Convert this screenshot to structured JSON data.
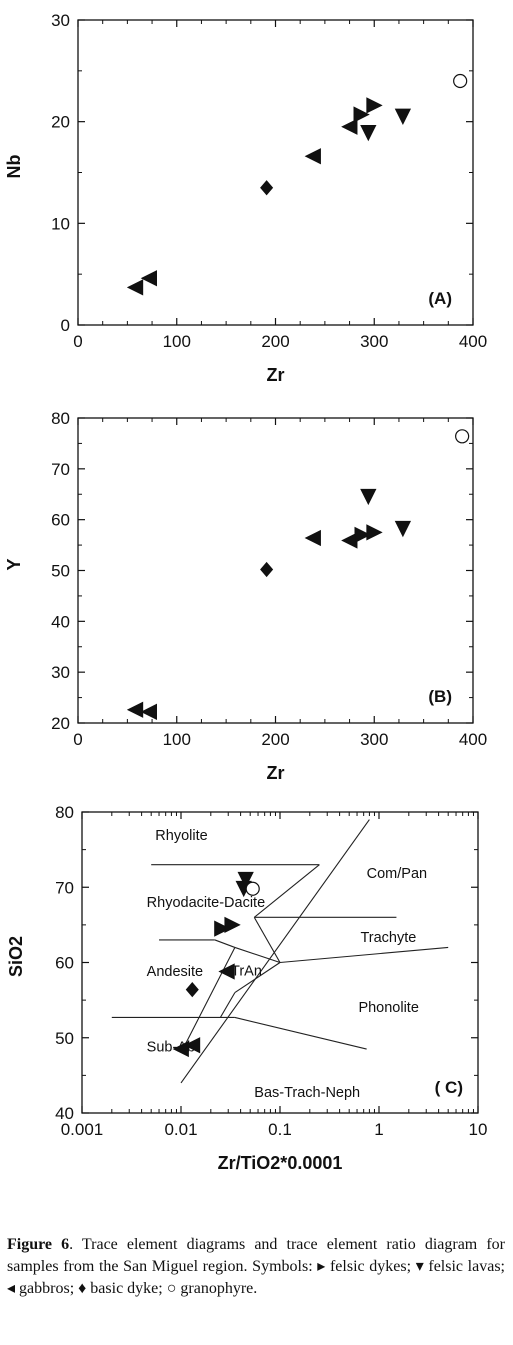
{
  "caption": {
    "label": "Figure 6",
    "text": ". Trace element diagrams and trace element ratio diagram for samples from the San Miguel region. Symbols: ▸ felsic dykes; ▾ felsic lavas; ◂ gabbros; ♦ basic dyke; ○ granophyre."
  },
  "chart_data": [
    {
      "type": "scatter",
      "panel_label": "(A)",
      "xlabel": "Zr",
      "ylabel": "Nb",
      "xlim": [
        0,
        400
      ],
      "ylim": [
        0,
        30
      ],
      "xticks": [
        "0",
        "100",
        "200",
        "300",
        "400"
      ],
      "yticks": [
        "0",
        "10",
        "20",
        "30"
      ],
      "series": [
        {
          "symbol": "left-triangle",
          "fill": "filled",
          "points": [
            [
              58,
              3.7
            ],
            [
              72,
              4.6
            ],
            [
              238,
              16.6
            ],
            [
              275,
              19.5
            ]
          ]
        },
        {
          "symbol": "right-triangle",
          "fill": "filled",
          "points": [
            [
              287,
              20.7
            ],
            [
              300,
              21.6
            ]
          ]
        },
        {
          "symbol": "down-triangle",
          "fill": "filled",
          "points": [
            [
              294,
              18.9
            ],
            [
              329,
              20.5
            ]
          ]
        },
        {
          "symbol": "diamond",
          "fill": "filled",
          "points": [
            [
              191,
              13.5
            ]
          ]
        },
        {
          "symbol": "circle",
          "fill": "open",
          "points": [
            [
              387,
              24.0
            ]
          ]
        }
      ]
    },
    {
      "type": "scatter",
      "panel_label": "(B)",
      "xlabel": "Zr",
      "ylabel": "Y",
      "xlim": [
        0,
        400
      ],
      "ylim": [
        20,
        80
      ],
      "xticks": [
        "0",
        "100",
        "200",
        "300",
        "400"
      ],
      "yticks": [
        "20",
        "30",
        "40",
        "50",
        "60",
        "70",
        "80"
      ],
      "series": [
        {
          "symbol": "left-triangle",
          "fill": "filled",
          "points": [
            [
              58,
              22.6
            ],
            [
              72,
              22.2
            ],
            [
              238,
              56.4
            ],
            [
              275,
              55.9
            ]
          ]
        },
        {
          "symbol": "right-triangle",
          "fill": "filled",
          "points": [
            [
              288,
              57.0
            ],
            [
              300,
              57.5
            ]
          ]
        },
        {
          "symbol": "down-triangle",
          "fill": "filled",
          "points": [
            [
              294,
              64.5
            ],
            [
              329,
              58.2
            ]
          ]
        },
        {
          "symbol": "diamond",
          "fill": "filled",
          "points": [
            [
              191,
              50.2
            ]
          ]
        },
        {
          "symbol": "circle",
          "fill": "open",
          "points": [
            [
              389,
              76.4
            ]
          ]
        }
      ]
    },
    {
      "type": "scatter",
      "panel_label": "( C)",
      "xlabel": "Zr/TiO2*0.0001",
      "ylabel": "SiO2",
      "xscale": "log",
      "xlim": [
        0.001,
        10
      ],
      "ylim": [
        40,
        80
      ],
      "xticks": [
        "0.001",
        "0.01",
        "0.1",
        "1",
        "10"
      ],
      "yticks": [
        "40",
        "50",
        "60",
        "70",
        "80"
      ],
      "field_labels": [
        {
          "text": "Rhyolite",
          "x": 0.0055,
          "y": 76.3
        },
        {
          "text": "Com/Pan",
          "x": 0.75,
          "y": 71.2
        },
        {
          "text": "Rhyodacite-Dacite",
          "x": 0.0045,
          "y": 67.4
        },
        {
          "text": "Trachyte",
          "x": 0.65,
          "y": 62.7
        },
        {
          "text": "Andesite",
          "x": 0.0045,
          "y": 58.2
        },
        {
          "text": "TrAn",
          "x": 0.032,
          "y": 58.3
        },
        {
          "text": "Phonolite",
          "x": 0.62,
          "y": 53.4
        },
        {
          "text": "Sub-Ab",
          "x": 0.0045,
          "y": 48.2
        },
        {
          "text": "Bas-Trach-Neph",
          "x": 0.055,
          "y": 42.1
        }
      ],
      "field_boundaries": [
        [
          [
            0.005,
            73
          ],
          [
            0.25,
            73
          ]
        ],
        [
          [
            0.25,
            73
          ],
          [
            0.055,
            66
          ]
        ],
        [
          [
            0.055,
            66
          ],
          [
            1.5,
            66
          ]
        ],
        [
          [
            0.055,
            66
          ],
          [
            0.1,
            60
          ]
        ],
        [
          [
            0.1,
            60
          ],
          [
            5,
            62
          ]
        ],
        [
          [
            0.006,
            63
          ],
          [
            0.022,
            63
          ]
        ],
        [
          [
            0.022,
            63
          ],
          [
            0.035,
            62
          ]
        ],
        [
          [
            0.035,
            62
          ],
          [
            0.1,
            60
          ]
        ],
        [
          [
            0.1,
            60
          ],
          [
            0.035,
            56
          ]
        ],
        [
          [
            0.035,
            56
          ],
          [
            0.025,
            52.7
          ]
        ],
        [
          [
            0.002,
            52.7
          ],
          [
            0.035,
            52.7
          ]
        ],
        [
          [
            0.035,
            52.7
          ],
          [
            0.75,
            48.5
          ]
        ],
        [
          [
            0.01,
            44
          ],
          [
            0.8,
            79
          ]
        ],
        [
          [
            0.01,
            48
          ],
          [
            0.035,
            62
          ]
        ]
      ],
      "series": [
        {
          "symbol": "left-triangle",
          "fill": "filled",
          "points": [
            [
              0.01,
              48.5
            ],
            [
              0.013,
              49.0
            ],
            [
              0.029,
              58.8
            ]
          ]
        },
        {
          "symbol": "right-triangle",
          "fill": "filled",
          "points": [
            [
              0.026,
              64.5
            ],
            [
              0.033,
              65.0
            ]
          ]
        },
        {
          "symbol": "down-triangle",
          "fill": "filled",
          "points": [
            [
              0.043,
              69.8
            ],
            [
              0.045,
              71.0
            ]
          ]
        },
        {
          "symbol": "diamond",
          "fill": "filled",
          "points": [
            [
              0.013,
              56.4
            ]
          ]
        },
        {
          "symbol": "circle",
          "fill": "open",
          "points": [
            [
              0.053,
              69.8
            ]
          ]
        }
      ]
    }
  ]
}
